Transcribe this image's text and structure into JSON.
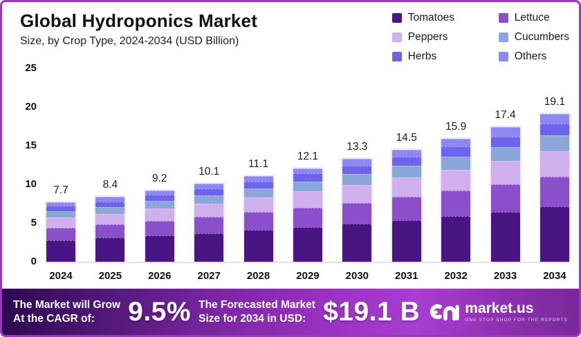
{
  "frame": {
    "border_color": "#9c36bb"
  },
  "header": {
    "title": "Global Hydroponics Market",
    "subtitle": "Size, by Crop Type, 2024-2034 (USD Billion)"
  },
  "chart_data": {
    "type": "bar",
    "stacked": true,
    "title": "Global Hydroponics Market Size, by Crop Type, 2024-2034 (USD Billion)",
    "categories": [
      "2024",
      "2025",
      "2026",
      "2027",
      "2028",
      "2029",
      "2030",
      "2031",
      "2032",
      "2033",
      "2034"
    ],
    "series": [
      {
        "name": "Tomatoes",
        "color": "#481582",
        "values": [
          2.8,
          3.1,
          3.4,
          3.7,
          4.1,
          4.5,
          4.9,
          5.4,
          5.9,
          6.4,
          7.1
        ]
      },
      {
        "name": "Lettuce",
        "color": "#8b4fcb",
        "values": [
          1.6,
          1.7,
          1.9,
          2.1,
          2.3,
          2.5,
          2.7,
          3.0,
          3.3,
          3.6,
          3.9
        ]
      },
      {
        "name": "Peppers",
        "color": "#cfb0ec",
        "values": [
          1.3,
          1.4,
          1.6,
          1.7,
          1.9,
          2.1,
          2.3,
          2.5,
          2.7,
          3.0,
          3.3
        ]
      },
      {
        "name": "Cucumbers",
        "color": "#8ba6da",
        "values": [
          0.8,
          0.9,
          1.0,
          1.1,
          1.2,
          1.3,
          1.4,
          1.5,
          1.7,
          1.8,
          2.0
        ]
      },
      {
        "name": "Herbs",
        "color": "#6e63ec",
        "values": [
          0.7,
          0.7,
          0.8,
          0.9,
          0.9,
          1.0,
          1.1,
          1.2,
          1.3,
          1.4,
          1.6
        ]
      },
      {
        "name": "Others",
        "color": "#8e88f3",
        "values": [
          0.5,
          0.6,
          0.5,
          0.6,
          0.7,
          0.7,
          0.9,
          0.9,
          1.0,
          1.2,
          1.2
        ]
      }
    ],
    "totals": [
      7.7,
      8.4,
      9.2,
      10.1,
      11.1,
      12.1,
      13.3,
      14.5,
      15.9,
      17.4,
      19.1
    ],
    "total_labels": [
      "7.7",
      "8.4",
      "9.2",
      "10.1",
      "11.1",
      "12.1",
      "13.3",
      "14.5",
      "15.9",
      "17.4",
      "19.1"
    ],
    "xlabel": "",
    "ylabel": "",
    "ylim": [
      0,
      25
    ],
    "yticks": [
      0,
      5,
      10,
      15,
      20,
      25
    ],
    "grid": false,
    "legend_position": "top-right"
  },
  "banner": {
    "cagr_label_line1": "The Market will Grow",
    "cagr_label_line2": "At the CAGR of:",
    "cagr_value": "9.5%",
    "forecast_label_line1": "The Forecasted Market",
    "forecast_label_line2": "Size for 2034 in USD:",
    "forecast_value": "$19.1 B",
    "brand": "market.us",
    "brand_tagline": "ONE STOP SHOP FOR THE REPORTS"
  }
}
